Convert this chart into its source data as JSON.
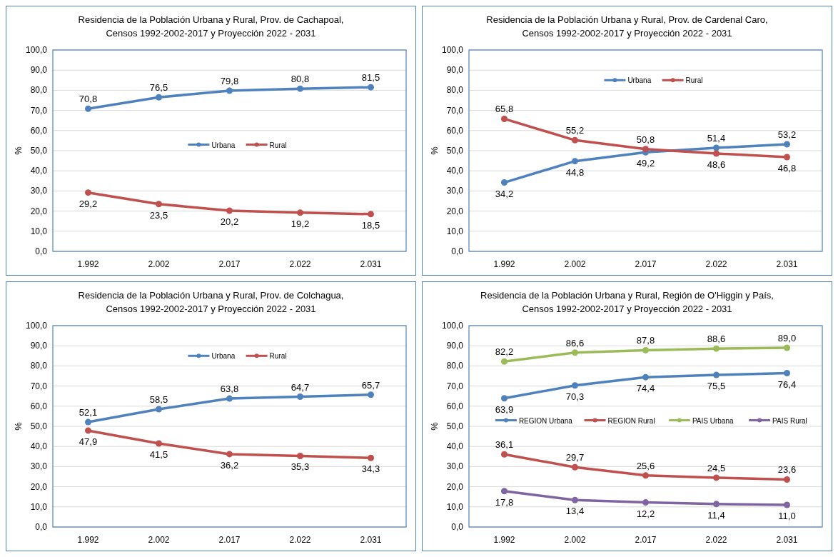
{
  "chart_data": [
    {
      "type": "line",
      "title": "Residencia de la Población Urbana y Rural, Prov. de Cachapoal,\nCensos 1992-2002-2017 y Proyección 2022 - 2031",
      "ylabel": "%",
      "categories": [
        "1.992",
        "2.002",
        "2.017",
        "2.022",
        "2.031"
      ],
      "ylim": [
        0,
        100
      ],
      "yticks": [
        {
          "value": 0,
          "label": "0,0"
        },
        {
          "value": 10,
          "label": "10,0"
        },
        {
          "value": 20,
          "label": "20,0"
        },
        {
          "value": 30,
          "label": "30,0"
        },
        {
          "value": 40,
          "label": "40,0"
        },
        {
          "value": 50,
          "label": "50,0"
        },
        {
          "value": 60,
          "label": "60,0"
        },
        {
          "value": 70,
          "label": "70,0"
        },
        {
          "value": 80,
          "label": "80,0"
        },
        {
          "value": 90,
          "label": "90,0"
        },
        {
          "value": 100,
          "label": "100,0"
        }
      ],
      "grid": "y",
      "legend": "center",
      "marker": "circle",
      "line_style": "solid",
      "series": [
        {
          "name": "Urbana",
          "color": "#4f81bd",
          "values": [
            70.8,
            76.5,
            79.8,
            80.8,
            81.5
          ],
          "value_labels": [
            "70,8",
            "76,5",
            "79,8",
            "80,8",
            "81,5"
          ]
        },
        {
          "name": "Rural",
          "color": "#c0504d",
          "values": [
            29.2,
            23.5,
            20.2,
            19.2,
            18.5
          ],
          "value_labels": [
            "29,2",
            "23,5",
            "20,2",
            "19,2",
            "18,5"
          ]
        }
      ]
    },
    {
      "type": "line",
      "title": "Residencia de la Población Urbana y Rural, Prov. de Cardenal Caro,\nCensos 1992-2002-2017 y Proyección 2022 - 2031",
      "ylabel": "%",
      "categories": [
        "1.992",
        "2.002",
        "2.017",
        "2.022",
        "2.031"
      ],
      "ylim": [
        0,
        100
      ],
      "yticks": [
        {
          "value": 0,
          "label": "0,0"
        },
        {
          "value": 10,
          "label": "10,0"
        },
        {
          "value": 20,
          "label": "20,0"
        },
        {
          "value": 30,
          "label": "30,0"
        },
        {
          "value": 40,
          "label": "40,0"
        },
        {
          "value": 50,
          "label": "50,0"
        },
        {
          "value": 60,
          "label": "60,0"
        },
        {
          "value": 70,
          "label": "70,0"
        },
        {
          "value": 80,
          "label": "80,0"
        },
        {
          "value": 90,
          "label": "90,0"
        },
        {
          "value": 100,
          "label": "100,0"
        }
      ],
      "grid": "y",
      "legend": "top",
      "marker": "circle",
      "line_style": "solid",
      "series": [
        {
          "name": "Urbana",
          "color": "#4f81bd",
          "values": [
            34.2,
            44.8,
            49.2,
            51.4,
            53.2
          ],
          "value_labels": [
            "34,2",
            "44,8",
            "49,2",
            "51,4",
            "53,2"
          ]
        },
        {
          "name": "Rural",
          "color": "#c0504d",
          "values": [
            65.8,
            55.2,
            50.8,
            48.6,
            46.8
          ],
          "value_labels": [
            "65,8",
            "55,2",
            "50,8",
            "48,6",
            "46,8"
          ]
        }
      ]
    },
    {
      "type": "line",
      "title": "Residencia de la Población Urbana y Rural, Prov. de Colchagua,\nCensos 1992-2002-2017 y Proyección 2022 - 2031",
      "ylabel": "%",
      "categories": [
        "1.992",
        "2.002",
        "2.017",
        "2.022",
        "2.031"
      ],
      "ylim": [
        0,
        100
      ],
      "yticks": [
        {
          "value": 0,
          "label": "0,0"
        },
        {
          "value": 10,
          "label": "10,0"
        },
        {
          "value": 20,
          "label": "20,0"
        },
        {
          "value": 30,
          "label": "30,0"
        },
        {
          "value": 40,
          "label": "40,0"
        },
        {
          "value": 50,
          "label": "50,0"
        },
        {
          "value": 60,
          "label": "60,0"
        },
        {
          "value": 70,
          "label": "70,0"
        },
        {
          "value": 80,
          "label": "80,0"
        },
        {
          "value": 90,
          "label": "90,0"
        },
        {
          "value": 100,
          "label": "100,0"
        }
      ],
      "grid": "y",
      "legend": "top",
      "marker": "circle",
      "line_style": "solid",
      "series": [
        {
          "name": "Urbana",
          "color": "#4f81bd",
          "values": [
            52.1,
            58.5,
            63.8,
            64.7,
            65.7
          ],
          "value_labels": [
            "52,1",
            "58,5",
            "63,8",
            "64,7",
            "65,7"
          ]
        },
        {
          "name": "Rural",
          "color": "#c0504d",
          "values": [
            47.9,
            41.5,
            36.2,
            35.3,
            34.3
          ],
          "value_labels": [
            "47,9",
            "41,5",
            "36,2",
            "35,3",
            "34,3"
          ]
        }
      ]
    },
    {
      "type": "line",
      "title": "Residencia de la Población Urbana y Rural, Región de O'Higgin y País,\nCensos 1992-2002-2017 y Proyección 2022 - 2031",
      "ylabel": "%",
      "categories": [
        "1.992",
        "2.002",
        "2.017",
        "2.022",
        "2.031"
      ],
      "ylim": [
        0,
        100
      ],
      "yticks": [
        {
          "value": 0,
          "label": "0,0"
        },
        {
          "value": 10,
          "label": "10,0"
        },
        {
          "value": 20,
          "label": "20,0"
        },
        {
          "value": 30,
          "label": "30,0"
        },
        {
          "value": 40,
          "label": "40,0"
        },
        {
          "value": 50,
          "label": "50,0"
        },
        {
          "value": 60,
          "label": "60,0"
        },
        {
          "value": 70,
          "label": "70,0"
        },
        {
          "value": 80,
          "label": "80,0"
        },
        {
          "value": 90,
          "label": "90,0"
        },
        {
          "value": 100,
          "label": "100,0"
        }
      ],
      "grid": "y",
      "legend": "center",
      "marker": "circle",
      "line_style": "solid",
      "series": [
        {
          "name": "REGION Urbana",
          "color": "#4f81bd",
          "values": [
            63.9,
            70.3,
            74.4,
            75.5,
            76.4
          ],
          "value_labels": [
            "63,9",
            "70,3",
            "74,4",
            "75,5",
            "76,4"
          ]
        },
        {
          "name": "REGION Rural",
          "color": "#c0504d",
          "values": [
            36.1,
            29.7,
            25.6,
            24.5,
            23.6
          ],
          "value_labels": [
            "36,1",
            "29,7",
            "25,6",
            "24,5",
            "23,6"
          ]
        },
        {
          "name": "PAIS Urbana",
          "color": "#9bbb59",
          "values": [
            82.2,
            86.6,
            87.8,
            88.6,
            89.0
          ],
          "value_labels": [
            "82,2",
            "86,6",
            "87,8",
            "88,6",
            "89,0"
          ]
        },
        {
          "name": "PAIS Rural",
          "color": "#8064a2",
          "values": [
            17.8,
            13.4,
            12.2,
            11.4,
            11.0
          ],
          "value_labels": [
            "17,8",
            "13,4",
            "12,2",
            "11,4",
            "11,0"
          ]
        }
      ]
    }
  ]
}
